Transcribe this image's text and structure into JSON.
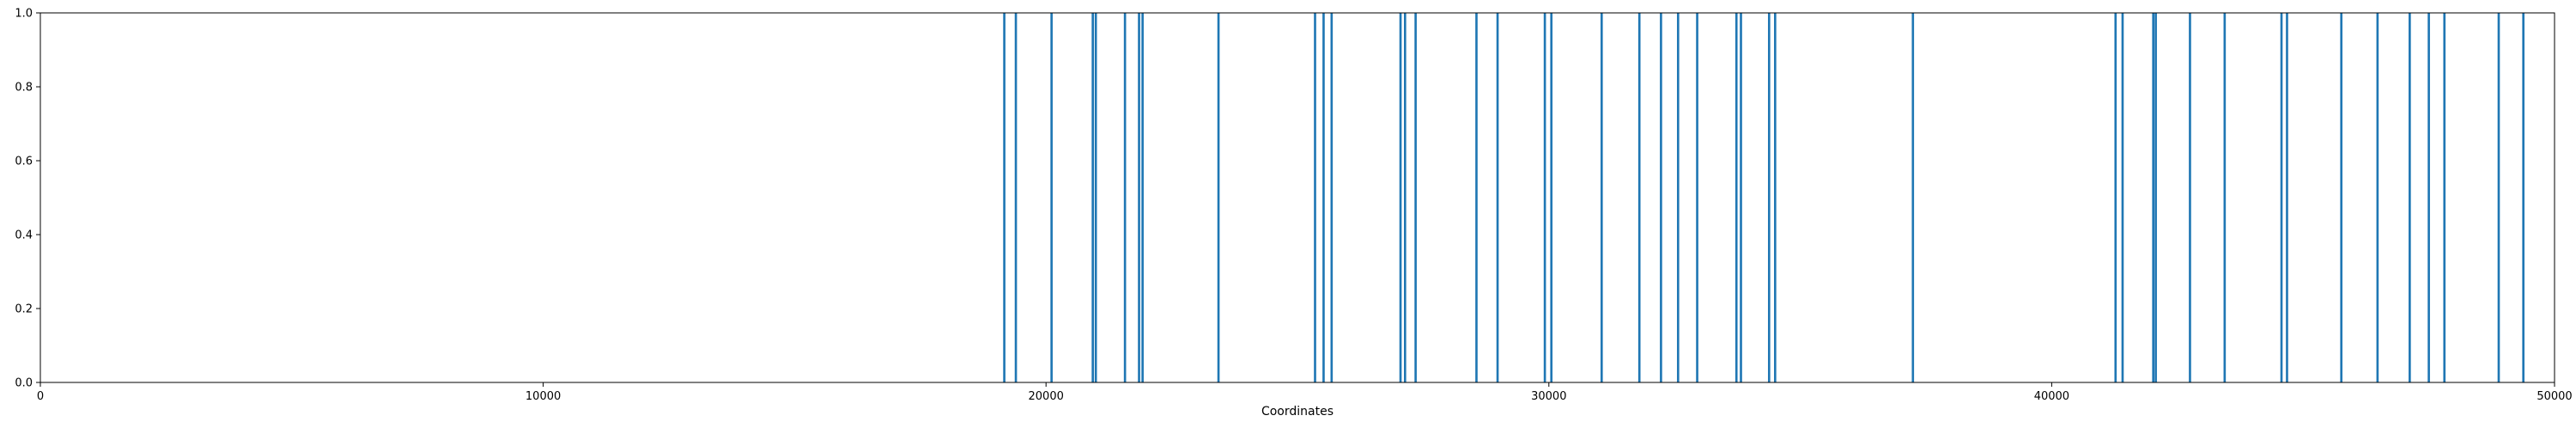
{
  "chart_data": {
    "type": "bar",
    "title": "",
    "xlabel": "Coordinates",
    "ylabel": "",
    "xlim": [
      0,
      50000
    ],
    "ylim": [
      0.0,
      1.0
    ],
    "grid": false,
    "color": "#1f77b4",
    "bar_width_units": 45,
    "x_ticks": [
      {
        "value": 0,
        "label": "0"
      },
      {
        "value": 10000,
        "label": "10000"
      },
      {
        "value": 20000,
        "label": "20000"
      },
      {
        "value": 30000,
        "label": "30000"
      },
      {
        "value": 40000,
        "label": "40000"
      },
      {
        "value": 50000,
        "label": "50000"
      }
    ],
    "y_ticks": [
      {
        "value": 0.0,
        "label": "0.0"
      },
      {
        "value": 0.2,
        "label": "0.2"
      },
      {
        "value": 0.4,
        "label": "0.4"
      },
      {
        "value": 0.6,
        "label": "0.6"
      },
      {
        "value": 0.8,
        "label": "0.8"
      },
      {
        "value": 1.0,
        "label": "1.0"
      }
    ],
    "x": [
      19170,
      19400,
      20110,
      20930,
      20990,
      21570,
      21850,
      21920,
      23430,
      25350,
      25520,
      25680,
      27050,
      27140,
      27350,
      28560,
      28980,
      29920,
      30050,
      31050,
      31800,
      32230,
      32570,
      32950,
      33730,
      33820,
      34380,
      34500,
      37240,
      41270,
      41410,
      42020,
      42070,
      42750,
      43440,
      44570,
      44680,
      45760,
      46480,
      47120,
      47500,
      47810,
      48890,
      49380
    ],
    "values": [
      1.0,
      1.0,
      1.0,
      1.0,
      1.0,
      1.0,
      1.0,
      1.0,
      1.0,
      1.0,
      1.0,
      1.0,
      1.0,
      1.0,
      1.0,
      1.0,
      1.0,
      1.0,
      1.0,
      1.0,
      1.0,
      1.0,
      1.0,
      1.0,
      1.0,
      1.0,
      1.0,
      1.0,
      1.0,
      1.0,
      1.0,
      1.0,
      1.0,
      1.0,
      1.0,
      1.0,
      1.0,
      1.0,
      1.0,
      1.0,
      1.0,
      1.0,
      1.0,
      1.0
    ]
  }
}
